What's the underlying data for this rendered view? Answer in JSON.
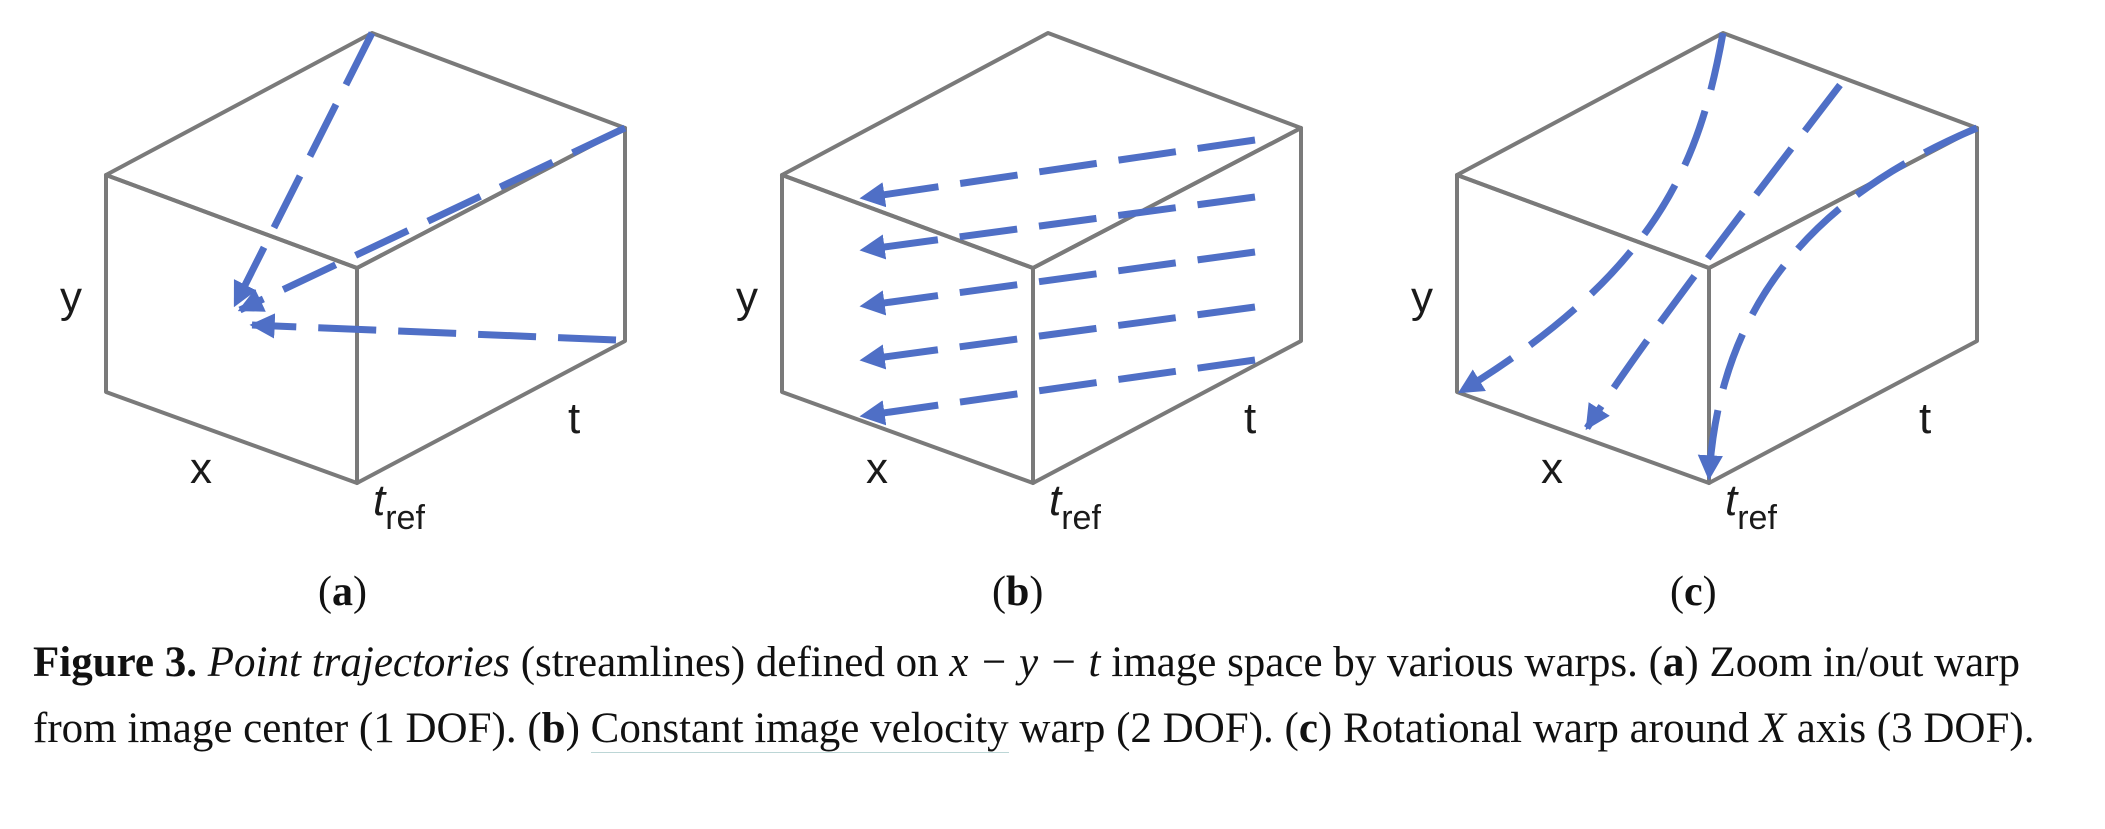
{
  "panels": [
    {
      "id": "a",
      "axis_y": "y",
      "axis_x": "x",
      "axis_t": "t",
      "tref_main": "t",
      "tref_sub": "ref",
      "label_open": "(",
      "label_letter": "a",
      "label_close": ")"
    },
    {
      "id": "b",
      "axis_y": "y",
      "axis_x": "x",
      "axis_t": "t",
      "tref_main": "t",
      "tref_sub": "ref",
      "label_open": "(",
      "label_letter": "b",
      "label_close": ")"
    },
    {
      "id": "c",
      "axis_y": "y",
      "axis_x": "x",
      "axis_t": "t",
      "tref_main": "t",
      "tref_sub": "ref",
      "label_open": "(",
      "label_letter": "c",
      "label_close": ")"
    }
  ],
  "colors": {
    "arrow": "#4f6fc6",
    "box": "#7a7a7a"
  },
  "caption": {
    "figure_label": "Figure 3.",
    "italic_term": "Point trajectories",
    "text_1": " (streamlines) defined on ",
    "math_xyt": "x − y − t",
    "text_2": " image space by various warps. (",
    "a_letter": "a",
    "a_text": ") Zoom in/out warp from image center (1 DOF). (",
    "b_letter": "b",
    "b_text_pre": ") ",
    "b_underlined": "Constant image velocity",
    "b_text": " warp (2 DOF). (",
    "c_letter": "c",
    "c_text": ") Rotational warp around ",
    "math_X": "X",
    "c_text_end": " axis (3 DOF)."
  }
}
